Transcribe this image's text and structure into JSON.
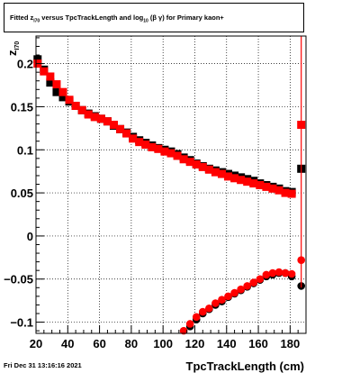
{
  "chart_data": {
    "type": "scatter",
    "title": {
      "prefix": "Fitted  z",
      "z_sub": "I70",
      "middle": "  versus TpcTrackLength and log",
      "log_sub": "10",
      "suffix": " (β  γ) for Primary kaon+"
    },
    "xlabel": "TpcTrackLength (cm)",
    "ylabel": "z",
    "ylabel_sub": "I70",
    "xlim": [
      20,
      190
    ],
    "ylim": [
      -0.113,
      0.232
    ],
    "xticks": [
      20,
      40,
      60,
      80,
      100,
      120,
      140,
      160,
      180
    ],
    "yticks": [
      -0.1,
      -0.05,
      0,
      0.05,
      0.1,
      0.15,
      0.2
    ],
    "ytick_labels": [
      "−0.1",
      "−0.05",
      "0",
      "0.05",
      "0.1",
      "0.15",
      "0.2"
    ],
    "grid": true,
    "series": [
      {
        "marker": "square",
        "color": "#000000",
        "x": [
          21,
          25,
          29,
          33,
          37,
          41,
          45,
          49,
          53,
          57,
          61,
          65,
          69,
          73,
          77,
          81,
          85,
          89,
          93,
          97,
          101,
          105,
          109,
          113,
          117,
          121,
          125,
          129,
          133,
          137,
          141,
          145,
          149,
          153,
          157,
          161,
          165,
          169,
          173,
          177,
          181,
          187
        ],
        "y": [
          0.205,
          0.193,
          0.178,
          0.167,
          0.161,
          0.156,
          0.151,
          0.146,
          0.142,
          0.139,
          0.136,
          0.133,
          0.128,
          0.124,
          0.12,
          0.115,
          0.111,
          0.108,
          0.105,
          0.102,
          0.1,
          0.098,
          0.095,
          0.091,
          0.088,
          0.084,
          0.081,
          0.078,
          0.076,
          0.074,
          0.072,
          0.07,
          0.068,
          0.066,
          0.064,
          0.061,
          0.059,
          0.057,
          0.055,
          0.052,
          0.051,
          0.078
        ]
      },
      {
        "marker": "square",
        "color": "#ff0000",
        "x": [
          21,
          25,
          29,
          33,
          37,
          41,
          45,
          49,
          53,
          57,
          61,
          65,
          69,
          73,
          77,
          81,
          85,
          89,
          93,
          97,
          101,
          105,
          109,
          113,
          117,
          121,
          125,
          129,
          133,
          137,
          141,
          145,
          149,
          153,
          157,
          161,
          165,
          169,
          173,
          177,
          181,
          187
        ],
        "y": [
          0.2,
          0.191,
          0.185,
          0.176,
          0.167,
          0.158,
          0.151,
          0.146,
          0.141,
          0.138,
          0.136,
          0.133,
          0.129,
          0.124,
          0.119,
          0.113,
          0.109,
          0.106,
          0.103,
          0.101,
          0.098,
          0.096,
          0.093,
          0.089,
          0.086,
          0.083,
          0.08,
          0.077,
          0.074,
          0.072,
          0.069,
          0.067,
          0.065,
          0.063,
          0.061,
          0.059,
          0.057,
          0.055,
          0.053,
          0.05,
          0.049,
          0.129
        ]
      },
      {
        "marker": "circle",
        "color": "#000000",
        "x": [
          117,
          121,
          125,
          129,
          133,
          137,
          141,
          145,
          149,
          153,
          157,
          161,
          165,
          169,
          173,
          177,
          181,
          187
        ],
        "y": [
          -0.105,
          -0.097,
          -0.09,
          -0.085,
          -0.08,
          -0.076,
          -0.071,
          -0.067,
          -0.063,
          -0.059,
          -0.055,
          -0.051,
          -0.047,
          -0.045,
          -0.043,
          -0.043,
          -0.047,
          -0.058
        ]
      },
      {
        "marker": "circle",
        "color": "#ff0000",
        "x": [
          113,
          117,
          121,
          125,
          129,
          133,
          137,
          141,
          145,
          149,
          153,
          157,
          161,
          165,
          169,
          173,
          177,
          181,
          187
        ],
        "y": [
          -0.11,
          -0.102,
          -0.094,
          -0.088,
          -0.084,
          -0.078,
          -0.074,
          -0.07,
          -0.066,
          -0.062,
          -0.058,
          -0.054,
          -0.05,
          -0.045,
          -0.043,
          -0.042,
          -0.043,
          -0.044,
          -0.028
        ]
      }
    ]
  },
  "footer": {
    "date": "Fri Dec 31 13:16:16 2021"
  }
}
